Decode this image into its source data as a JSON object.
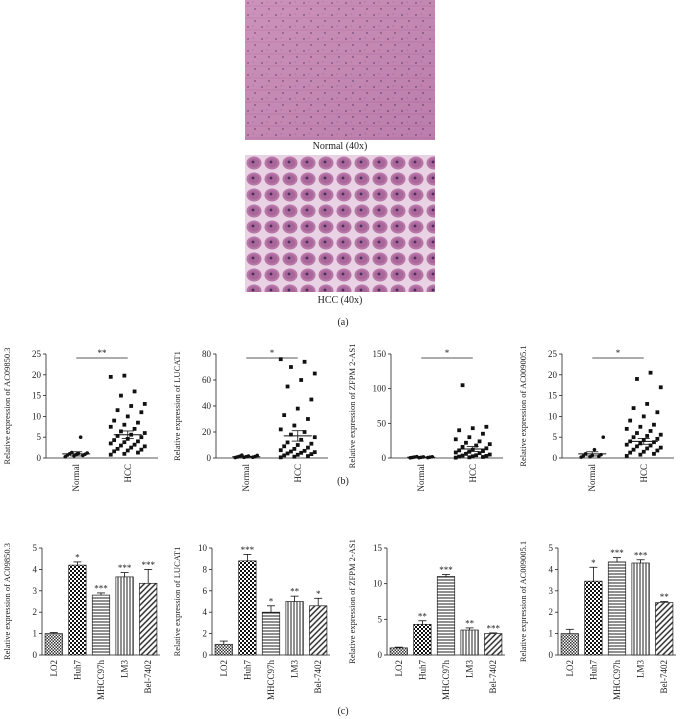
{
  "images": {
    "normal_caption": "Normal (40x)",
    "hcc_caption": "HCC (40x)"
  },
  "panels": {
    "a": "(a)",
    "b": "(b)",
    "c": "(c)"
  },
  "chart_data": [
    {
      "type": "scatter",
      "id": "b1",
      "ylabel": "Relative expression of AC09850.3",
      "ylim": [
        0,
        25
      ],
      "yticks": [
        0,
        5,
        10,
        15,
        20,
        25
      ],
      "categories": [
        "Normal",
        "HCC"
      ],
      "significance": "**",
      "mean": [
        1.0,
        5.6
      ],
      "sem": [
        0.5,
        0.9
      ],
      "series": [
        {
          "values": [
            0.3,
            0.5,
            0.6,
            0.7,
            0.8,
            0.9,
            1.0,
            1.1,
            1.2,
            1.3,
            5.0
          ]
        },
        {
          "values": [
            0.8,
            1.0,
            1.3,
            1.6,
            1.8,
            2.0,
            2.2,
            2.5,
            2.8,
            3.0,
            3.2,
            3.5,
            3.8,
            4.0,
            4.3,
            4.6,
            5.0,
            5.3,
            5.6,
            6.0,
            6.4,
            7.0,
            7.5,
            8.0,
            8.5,
            9.0,
            10.0,
            11.0,
            11.5,
            12.5,
            13.0,
            15.0,
            16.0,
            19.5,
            19.8
          ]
        }
      ]
    },
    {
      "type": "scatter",
      "id": "b2",
      "ylabel": "Relative expression of LUCAT1",
      "ylim": [
        0,
        80
      ],
      "yticks": [
        0,
        20,
        40,
        60,
        80
      ],
      "categories": [
        "Normal",
        "HCC"
      ],
      "significance": "*",
      "mean": [
        1.0,
        17.0
      ],
      "sem": [
        0.3,
        4.0
      ],
      "series": [
        {
          "values": [
            0.3,
            0.5,
            0.6,
            0.8,
            1.0,
            1.1,
            1.3,
            1.5,
            2.0,
            2.2
          ]
        },
        {
          "values": [
            0.5,
            1.0,
            1.5,
            2.0,
            2.5,
            3.0,
            3.5,
            4.0,
            4.5,
            5.0,
            5.5,
            6.0,
            7.0,
            8.0,
            9.0,
            10.0,
            11.0,
            12.0,
            14.0,
            16.0,
            18.0,
            20.0,
            22.0,
            25.0,
            30.0,
            33.0,
            38.0,
            45.0,
            55.0,
            60.0,
            65.0,
            70.0,
            74.0,
            76.0
          ]
        }
      ]
    },
    {
      "type": "scatter",
      "id": "b3",
      "ylabel": "Relative expression of ZFPM 2-AS1",
      "ylim": [
        0,
        150
      ],
      "yticks": [
        0,
        50,
        100,
        150
      ],
      "categories": [
        "Normal",
        "HCC"
      ],
      "significance": "*",
      "mean": [
        1.0,
        13.0
      ],
      "sem": [
        0.3,
        3.5
      ],
      "series": [
        {
          "values": [
            0.2,
            0.4,
            0.6,
            0.8,
            1.0,
            1.2,
            1.4,
            1.6,
            1.8,
            2.0
          ]
        },
        {
          "values": [
            0.5,
            1.0,
            1.5,
            2.0,
            2.5,
            3.0,
            3.5,
            4.0,
            5.0,
            6.0,
            7.0,
            8.0,
            9.0,
            10.0,
            11.0,
            12.0,
            14.0,
            16.0,
            18.0,
            20.0,
            22.0,
            24.0,
            27.0,
            30.0,
            35.0,
            40.0,
            43.0,
            45.0,
            105.0
          ]
        }
      ]
    },
    {
      "type": "scatter",
      "id": "b4",
      "ylabel": "Relative expression of AC009005.1",
      "ylim": [
        0,
        25
      ],
      "yticks": [
        0,
        5,
        10,
        15,
        20,
        25
      ],
      "categories": [
        "Normal",
        "HCC"
      ],
      "significance": "*",
      "mean": [
        1.0,
        4.0
      ],
      "sem": [
        0.5,
        0.7
      ],
      "series": [
        {
          "values": [
            0.2,
            0.3,
            0.4,
            0.5,
            0.6,
            0.8,
            1.0,
            2.0,
            5.0
          ]
        },
        {
          "values": [
            0.5,
            0.8,
            1.0,
            1.3,
            1.5,
            1.8,
            2.0,
            2.3,
            2.5,
            2.8,
            3.0,
            3.2,
            3.5,
            3.8,
            4.0,
            4.3,
            4.6,
            5.0,
            5.3,
            5.6,
            6.0,
            6.5,
            7.0,
            7.5,
            8.0,
            9.0,
            10.0,
            11.0,
            12.0,
            13.0,
            17.0,
            19.0,
            20.5
          ]
        }
      ]
    },
    {
      "type": "bar",
      "id": "c1",
      "ylabel": "Relative expression of AC09850.3",
      "ylim": [
        0,
        5
      ],
      "yticks": [
        0,
        1,
        2,
        3,
        4,
        5
      ],
      "categories": [
        "LO2",
        "Huh7",
        "MHCC97h",
        "LM3",
        "Bel-7402"
      ],
      "values": [
        1.0,
        4.2,
        2.8,
        3.65,
        3.35
      ],
      "errors": [
        0.05,
        0.15,
        0.1,
        0.2,
        0.65
      ],
      "significance": [
        "",
        "*",
        "***",
        "***",
        "***"
      ]
    },
    {
      "type": "bar",
      "id": "c2",
      "ylabel": "Relative expression of LUCAT1",
      "ylim": [
        0,
        10
      ],
      "yticks": [
        0,
        2,
        4,
        6,
        8,
        10
      ],
      "categories": [
        "LO2",
        "Huh7",
        "MHCC97h",
        "LM3",
        "Bel-7402"
      ],
      "values": [
        1.0,
        8.8,
        4.0,
        5.0,
        4.6
      ],
      "errors": [
        0.3,
        0.6,
        0.6,
        0.5,
        0.7
      ],
      "significance": [
        "",
        "***",
        "*",
        "**",
        "*"
      ]
    },
    {
      "type": "bar",
      "id": "c3",
      "ylabel": "Relative expression of ZFPM 2-AS1",
      "ylim": [
        0,
        15
      ],
      "yticks": [
        0,
        5,
        10,
        15
      ],
      "categories": [
        "LO2",
        "Huh7",
        "MHCC97h",
        "LM3",
        "Bel-7402"
      ],
      "values": [
        1.0,
        4.3,
        11.0,
        3.5,
        3.0
      ],
      "errors": [
        0.1,
        0.5,
        0.3,
        0.3,
        0.1
      ],
      "significance": [
        "",
        "**",
        "***",
        "**",
        "***"
      ]
    },
    {
      "type": "bar",
      "id": "c4",
      "ylabel": "Relative expression of AC009005.1",
      "ylim": [
        0,
        5
      ],
      "yticks": [
        0,
        1,
        2,
        3,
        4,
        5
      ],
      "categories": [
        "LO2",
        "Huh7",
        "MHCC97h",
        "LM3",
        "Bel-7402"
      ],
      "values": [
        1.0,
        3.45,
        4.35,
        4.3,
        2.45
      ],
      "errors": [
        0.2,
        0.65,
        0.2,
        0.15,
        0.05
      ],
      "significance": [
        "",
        "*",
        "***",
        "***",
        "**"
      ]
    }
  ]
}
